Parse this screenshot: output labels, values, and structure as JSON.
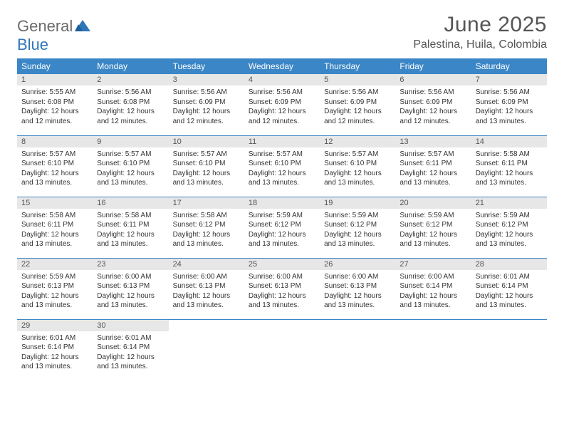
{
  "logo": {
    "text1": "General",
    "text2": "Blue"
  },
  "title": "June 2025",
  "location": "Palestina, Huila, Colombia",
  "colors": {
    "header_bg": "#3b86c6",
    "header_text": "#ffffff",
    "daynum_bg": "#e7e7e7",
    "body_text": "#333333",
    "title_text": "#555555",
    "logo_gray": "#6b6b6b",
    "logo_blue": "#2f76b8",
    "rule": "#3b86c6"
  },
  "weekdays": [
    "Sunday",
    "Monday",
    "Tuesday",
    "Wednesday",
    "Thursday",
    "Friday",
    "Saturday"
  ],
  "labels": {
    "sunrise": "Sunrise:",
    "sunset": "Sunset:",
    "daylight": "Daylight:"
  },
  "weeks": [
    [
      {
        "n": "1",
        "sunrise": "5:55 AM",
        "sunset": "6:08 PM",
        "daylight": "12 hours and 12 minutes."
      },
      {
        "n": "2",
        "sunrise": "5:56 AM",
        "sunset": "6:08 PM",
        "daylight": "12 hours and 12 minutes."
      },
      {
        "n": "3",
        "sunrise": "5:56 AM",
        "sunset": "6:09 PM",
        "daylight": "12 hours and 12 minutes."
      },
      {
        "n": "4",
        "sunrise": "5:56 AM",
        "sunset": "6:09 PM",
        "daylight": "12 hours and 12 minutes."
      },
      {
        "n": "5",
        "sunrise": "5:56 AM",
        "sunset": "6:09 PM",
        "daylight": "12 hours and 12 minutes."
      },
      {
        "n": "6",
        "sunrise": "5:56 AM",
        "sunset": "6:09 PM",
        "daylight": "12 hours and 12 minutes."
      },
      {
        "n": "7",
        "sunrise": "5:56 AM",
        "sunset": "6:09 PM",
        "daylight": "12 hours and 13 minutes."
      }
    ],
    [
      {
        "n": "8",
        "sunrise": "5:57 AM",
        "sunset": "6:10 PM",
        "daylight": "12 hours and 13 minutes."
      },
      {
        "n": "9",
        "sunrise": "5:57 AM",
        "sunset": "6:10 PM",
        "daylight": "12 hours and 13 minutes."
      },
      {
        "n": "10",
        "sunrise": "5:57 AM",
        "sunset": "6:10 PM",
        "daylight": "12 hours and 13 minutes."
      },
      {
        "n": "11",
        "sunrise": "5:57 AM",
        "sunset": "6:10 PM",
        "daylight": "12 hours and 13 minutes."
      },
      {
        "n": "12",
        "sunrise": "5:57 AM",
        "sunset": "6:10 PM",
        "daylight": "12 hours and 13 minutes."
      },
      {
        "n": "13",
        "sunrise": "5:57 AM",
        "sunset": "6:11 PM",
        "daylight": "12 hours and 13 minutes."
      },
      {
        "n": "14",
        "sunrise": "5:58 AM",
        "sunset": "6:11 PM",
        "daylight": "12 hours and 13 minutes."
      }
    ],
    [
      {
        "n": "15",
        "sunrise": "5:58 AM",
        "sunset": "6:11 PM",
        "daylight": "12 hours and 13 minutes."
      },
      {
        "n": "16",
        "sunrise": "5:58 AM",
        "sunset": "6:11 PM",
        "daylight": "12 hours and 13 minutes."
      },
      {
        "n": "17",
        "sunrise": "5:58 AM",
        "sunset": "6:12 PM",
        "daylight": "12 hours and 13 minutes."
      },
      {
        "n": "18",
        "sunrise": "5:59 AM",
        "sunset": "6:12 PM",
        "daylight": "12 hours and 13 minutes."
      },
      {
        "n": "19",
        "sunrise": "5:59 AM",
        "sunset": "6:12 PM",
        "daylight": "12 hours and 13 minutes."
      },
      {
        "n": "20",
        "sunrise": "5:59 AM",
        "sunset": "6:12 PM",
        "daylight": "12 hours and 13 minutes."
      },
      {
        "n": "21",
        "sunrise": "5:59 AM",
        "sunset": "6:12 PM",
        "daylight": "12 hours and 13 minutes."
      }
    ],
    [
      {
        "n": "22",
        "sunrise": "5:59 AM",
        "sunset": "6:13 PM",
        "daylight": "12 hours and 13 minutes."
      },
      {
        "n": "23",
        "sunrise": "6:00 AM",
        "sunset": "6:13 PM",
        "daylight": "12 hours and 13 minutes."
      },
      {
        "n": "24",
        "sunrise": "6:00 AM",
        "sunset": "6:13 PM",
        "daylight": "12 hours and 13 minutes."
      },
      {
        "n": "25",
        "sunrise": "6:00 AM",
        "sunset": "6:13 PM",
        "daylight": "12 hours and 13 minutes."
      },
      {
        "n": "26",
        "sunrise": "6:00 AM",
        "sunset": "6:13 PM",
        "daylight": "12 hours and 13 minutes."
      },
      {
        "n": "27",
        "sunrise": "6:00 AM",
        "sunset": "6:14 PM",
        "daylight": "12 hours and 13 minutes."
      },
      {
        "n": "28",
        "sunrise": "6:01 AM",
        "sunset": "6:14 PM",
        "daylight": "12 hours and 13 minutes."
      }
    ],
    [
      {
        "n": "29",
        "sunrise": "6:01 AM",
        "sunset": "6:14 PM",
        "daylight": "12 hours and 13 minutes."
      },
      {
        "n": "30",
        "sunrise": "6:01 AM",
        "sunset": "6:14 PM",
        "daylight": "12 hours and 13 minutes."
      },
      null,
      null,
      null,
      null,
      null
    ]
  ]
}
